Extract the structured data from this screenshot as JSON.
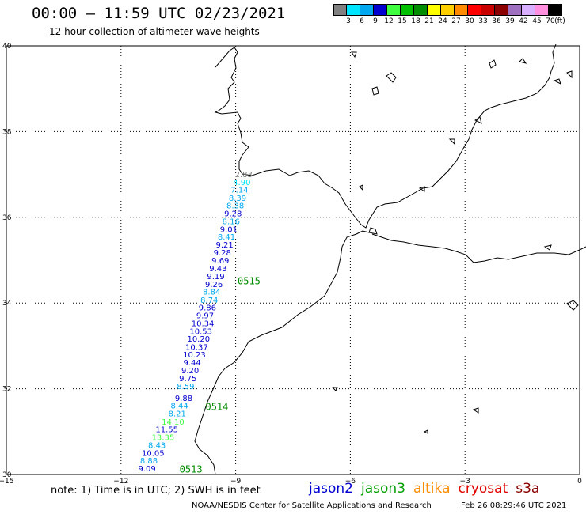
{
  "header": {
    "title": "00:00 – 11:59 UTC 02/23/2021",
    "subtitle": "12 hour collection of altimeter wave heights"
  },
  "legend": {
    "unit_label": "(ft)",
    "bins": [
      {
        "label": "3",
        "color": "#808080"
      },
      {
        "label": "6",
        "color": "#00e5ff"
      },
      {
        "label": "9",
        "color": "#00a8f0"
      },
      {
        "label": "12",
        "color": "#0000d0"
      },
      {
        "label": "15",
        "color": "#40ff40"
      },
      {
        "label": "18",
        "color": "#00c000"
      },
      {
        "label": "21",
        "color": "#008c00"
      },
      {
        "label": "24",
        "color": "#ffff00"
      },
      {
        "label": "27",
        "color": "#ffd000"
      },
      {
        "label": "30",
        "color": "#ff8c00"
      },
      {
        "label": "33",
        "color": "#ff0000"
      },
      {
        "label": "36",
        "color": "#c80000"
      },
      {
        "label": "39",
        "color": "#8b0000"
      },
      {
        "label": "42",
        "color": "#a070c0"
      },
      {
        "label": "45",
        "color": "#d8b0ff"
      },
      {
        "label": "70",
        "color": "#ff90e0"
      },
      {
        "label": "",
        "color": "#000000"
      }
    ]
  },
  "map": {
    "lat_ticks": [
      "40",
      "38",
      "36",
      "34",
      "32",
      "30"
    ],
    "lon_ticks": [
      "−15",
      "−12",
      "−9",
      "−6",
      "−3",
      "0"
    ],
    "lat_range": [
      30,
      40
    ],
    "lon_range": [
      -15,
      0
    ],
    "track": [
      {
        "value": "2.83",
        "color": "#808080",
        "lat": 37.01,
        "lon": -8.79
      },
      {
        "value": "4.90",
        "color": "#00e5ff",
        "lat": 36.83,
        "lon": -8.84
      },
      {
        "value": "7.14",
        "color": "#00a8f0",
        "lat": 36.65,
        "lon": -8.9
      },
      {
        "value": "8.39",
        "color": "#00a8f0",
        "lat": 36.46,
        "lon": -8.95
      },
      {
        "value": "8.38",
        "color": "#00a8f0",
        "lat": 36.28,
        "lon": -9.01
      },
      {
        "value": "9.28",
        "color": "#0000d0",
        "lat": 36.1,
        "lon": -9.07
      },
      {
        "value": "8.16",
        "color": "#00a8f0",
        "lat": 35.91,
        "lon": -9.12
      },
      {
        "value": "9.01",
        "color": "#0000d0",
        "lat": 35.73,
        "lon": -9.18
      },
      {
        "value": "8.41",
        "color": "#00a8f0",
        "lat": 35.55,
        "lon": -9.24
      },
      {
        "value": "9.21",
        "color": "#0000d0",
        "lat": 35.37,
        "lon": -9.29
      },
      {
        "value": "9.28",
        "color": "#0000d0",
        "lat": 35.18,
        "lon": -9.35
      },
      {
        "value": "9.69",
        "color": "#0000d0",
        "lat": 35.0,
        "lon": -9.4
      },
      {
        "value": "9.43",
        "color": "#0000d0",
        "lat": 34.82,
        "lon": -9.46
      },
      {
        "value": "9.19",
        "color": "#0000d0",
        "lat": 34.63,
        "lon": -9.52
      },
      {
        "value": "9.26",
        "color": "#0000d0",
        "lat": 34.45,
        "lon": -9.57
      },
      {
        "value": "8.84",
        "color": "#00a8f0",
        "lat": 34.27,
        "lon": -9.63
      },
      {
        "value": "8.74",
        "color": "#00a8f0",
        "lat": 34.08,
        "lon": -9.69
      },
      {
        "value": "9.86",
        "color": "#0000d0",
        "lat": 33.9,
        "lon": -9.74
      },
      {
        "value": "9.97",
        "color": "#0000d0",
        "lat": 33.72,
        "lon": -9.8
      },
      {
        "value": "10.34",
        "color": "#0000d0",
        "lat": 33.53,
        "lon": -9.86
      },
      {
        "value": "10.53",
        "color": "#0000d0",
        "lat": 33.35,
        "lon": -9.91
      },
      {
        "value": "10.20",
        "color": "#0000d0",
        "lat": 33.17,
        "lon": -9.97
      },
      {
        "value": "10.37",
        "color": "#0000d0",
        "lat": 32.98,
        "lon": -10.02
      },
      {
        "value": "10.23",
        "color": "#0000d0",
        "lat": 32.8,
        "lon": -10.08
      },
      {
        "value": "9.44",
        "color": "#0000d0",
        "lat": 32.62,
        "lon": -10.14
      },
      {
        "value": "9.20",
        "color": "#0000d0",
        "lat": 32.44,
        "lon": -10.19
      },
      {
        "value": "9.75",
        "color": "#0000d0",
        "lat": 32.25,
        "lon": -10.25
      },
      {
        "value": "8.59",
        "color": "#00a8f0",
        "lat": 32.07,
        "lon": -10.31
      },
      {
        "value": "9.88",
        "color": "#0000d0",
        "lat": 31.79,
        "lon": -10.36
      },
      {
        "value": "8.44",
        "color": "#00a8f0",
        "lat": 31.61,
        "lon": -10.47
      },
      {
        "value": "8.21",
        "color": "#00a8f0",
        "lat": 31.43,
        "lon": -10.53
      },
      {
        "value": "14.10",
        "color": "#40ff40",
        "lat": 31.24,
        "lon": -10.64
      },
      {
        "value": "11.55",
        "color": "#0000d0",
        "lat": 31.06,
        "lon": -10.8
      },
      {
        "value": "13.35",
        "color": "#40ff40",
        "lat": 30.88,
        "lon": -10.9
      },
      {
        "value": "8.43",
        "color": "#00a8f0",
        "lat": 30.69,
        "lon": -11.06
      },
      {
        "value": "10.05",
        "color": "#0000d0",
        "lat": 30.51,
        "lon": -11.16
      },
      {
        "value": "8.88",
        "color": "#00a8f0",
        "lat": 30.33,
        "lon": -11.27
      },
      {
        "value": "9.09",
        "color": "#0000d0",
        "lat": 30.15,
        "lon": -11.32
      }
    ],
    "time_labels": [
      {
        "text": "0515",
        "lat": 34.53,
        "lon": -8.95
      },
      {
        "text": "0514",
        "lat": 31.6,
        "lon": -9.79
      },
      {
        "text": "0513",
        "lat": 30.14,
        "lon": -10.47
      }
    ],
    "time_label_color": "#008c00"
  },
  "footer": {
    "note": "note: 1) Time is in UTC; 2) SWH is in feet",
    "satellites": [
      {
        "name": "jason2",
        "color": "#0000d0"
      },
      {
        "name": "jason3",
        "color": "#00a000"
      },
      {
        "name": "altika",
        "color": "#ff8c00"
      },
      {
        "name": "cryosat",
        "color": "#e00000"
      },
      {
        "name": "s3a",
        "color": "#8b0000"
      }
    ],
    "credit": "NOAA/NESDIS Center for Satellite Applications and Research",
    "timestamp": "Feb 26 08:29:46 UTC 2021"
  }
}
